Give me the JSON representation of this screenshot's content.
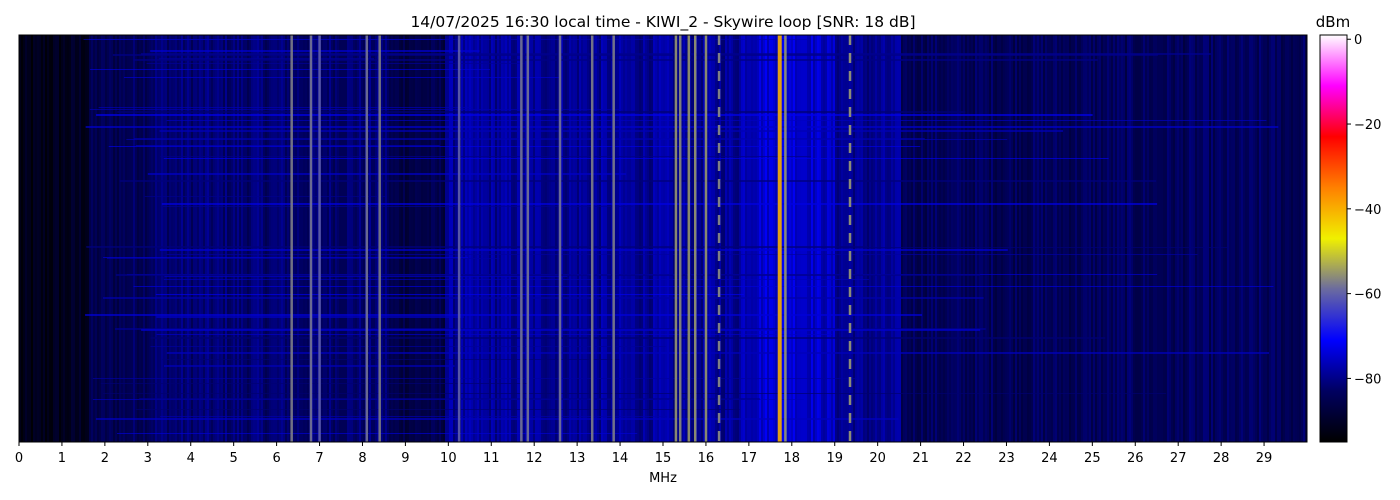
{
  "chart_data": {
    "type": "heatmap",
    "title": "14/07/2025 16:30 local time - KIWI_2 - Skywire loop [SNR: 18 dB]",
    "xlabel": "MHz",
    "ylabel": "",
    "xlim": [
      0,
      30
    ],
    "x_ticks": [
      "0",
      "1",
      "2",
      "3",
      "4",
      "5",
      "6",
      "7",
      "8",
      "9",
      "10",
      "11",
      "12",
      "13",
      "14",
      "15",
      "16",
      "17",
      "18",
      "19",
      "20",
      "21",
      "22",
      "23",
      "24",
      "25",
      "26",
      "27",
      "28",
      "29"
    ],
    "colorbar": {
      "label": "dBm",
      "range": [
        -95,
        1
      ],
      "ticks": [
        {
          "value": 0,
          "label": "0"
        },
        {
          "value": -20,
          "label": "−20"
        },
        {
          "value": -40,
          "label": "−40"
        },
        {
          "value": -60,
          "label": "−60"
        },
        {
          "value": -80,
          "label": "−80"
        }
      ],
      "colors": [
        "#000000",
        "#000060",
        "#0000ff",
        "#6a6aa0",
        "#f0f000",
        "#ff8000",
        "#ff0000",
        "#ff00ff",
        "#ffffff"
      ]
    },
    "background_level_dbm": -85,
    "strong_signals": [
      {
        "freq": 6.35,
        "level": -57,
        "note": "yellow continuous"
      },
      {
        "freq": 6.8,
        "level": -58
      },
      {
        "freq": 7.0,
        "level": -60
      },
      {
        "freq": 8.1,
        "level": -58
      },
      {
        "freq": 8.4,
        "level": -57
      },
      {
        "freq": 10.25,
        "level": -60
      },
      {
        "freq": 11.7,
        "level": -58
      },
      {
        "freq": 11.85,
        "level": -58
      },
      {
        "freq": 12.6,
        "level": -58
      },
      {
        "freq": 13.35,
        "level": -57
      },
      {
        "freq": 13.85,
        "level": -57
      },
      {
        "freq": 15.3,
        "level": -55
      },
      {
        "freq": 15.4,
        "level": -56
      },
      {
        "freq": 15.6,
        "level": -55
      },
      {
        "freq": 15.75,
        "level": -55
      },
      {
        "freq": 16.0,
        "level": -55
      },
      {
        "freq": 16.3,
        "level": -57,
        "note": "intermittent"
      },
      {
        "freq": 17.7,
        "level": -40,
        "note": "red, strongest"
      },
      {
        "freq": 17.85,
        "level": -55
      },
      {
        "freq": 19.35,
        "level": -56,
        "note": "intermittent"
      }
    ]
  }
}
